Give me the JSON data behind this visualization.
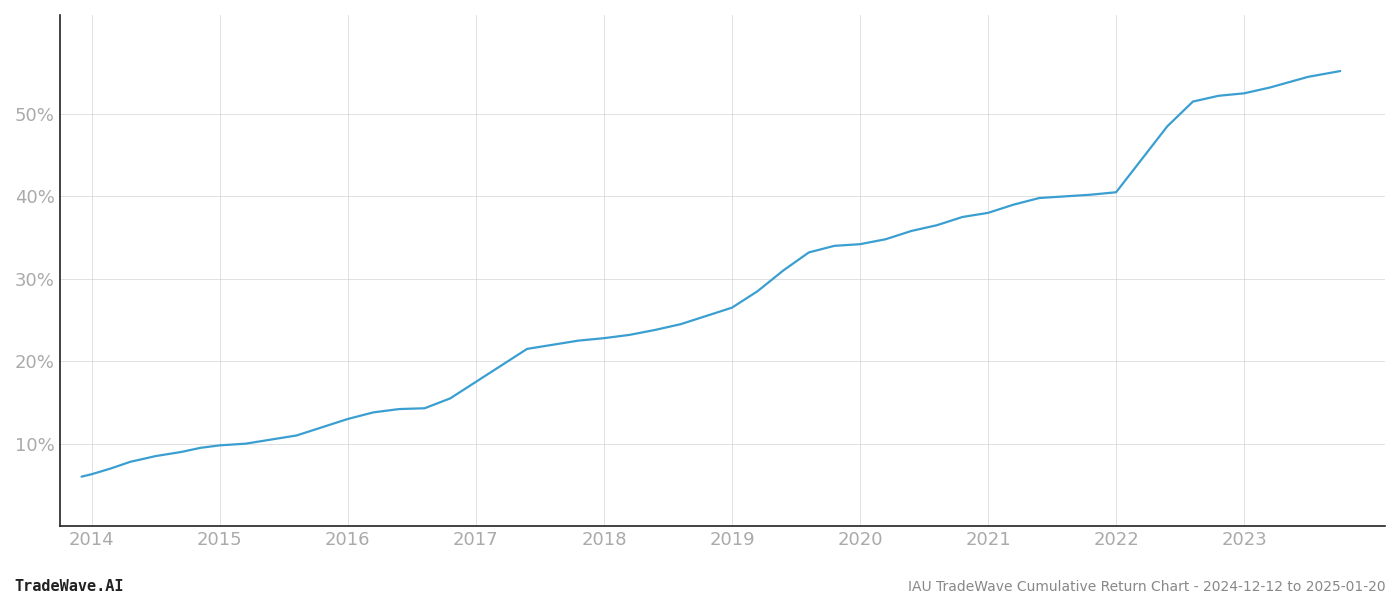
{
  "title": "IAU TradeWave Cumulative Return Chart - 2024-12-12 to 2025-01-20",
  "watermark": "TradeWave.AI",
  "line_color": "#3a9fd0",
  "background_color": "#ffffff",
  "grid_color": "#cccccc",
  "x_years": [
    2014,
    2015,
    2016,
    2017,
    2018,
    2019,
    2020,
    2021,
    2022,
    2023
  ],
  "x_values": [
    2013.92,
    2014.0,
    2014.15,
    2014.3,
    2014.5,
    2014.7,
    2014.85,
    2015.0,
    2015.2,
    2015.4,
    2015.6,
    2015.8,
    2016.0,
    2016.2,
    2016.4,
    2016.6,
    2016.8,
    2017.0,
    2017.2,
    2017.4,
    2017.6,
    2017.8,
    2018.0,
    2018.2,
    2018.4,
    2018.6,
    2018.8,
    2019.0,
    2019.2,
    2019.4,
    2019.6,
    2019.8,
    2020.0,
    2020.2,
    2020.4,
    2020.6,
    2020.8,
    2021.0,
    2021.2,
    2021.4,
    2021.6,
    2021.8,
    2022.0,
    2022.2,
    2022.4,
    2022.6,
    2022.8,
    2023.0,
    2023.2,
    2023.5,
    2023.75
  ],
  "y_values": [
    6.0,
    6.3,
    7.0,
    7.8,
    8.5,
    9.0,
    9.5,
    9.8,
    10.0,
    10.5,
    11.0,
    12.0,
    13.0,
    13.8,
    14.2,
    14.3,
    15.5,
    17.5,
    19.5,
    21.5,
    22.0,
    22.5,
    22.8,
    23.2,
    23.8,
    24.5,
    25.5,
    26.5,
    28.5,
    31.0,
    33.2,
    34.0,
    34.2,
    34.8,
    35.8,
    36.5,
    37.5,
    38.0,
    39.0,
    39.8,
    40.0,
    40.2,
    40.5,
    44.5,
    48.5,
    51.5,
    52.2,
    52.5,
    53.2,
    54.5,
    55.2
  ],
  "yticks": [
    10,
    20,
    30,
    40,
    50
  ],
  "ylim": [
    0,
    62
  ],
  "xlim": [
    2013.75,
    2024.1
  ],
  "line_width": 1.6,
  "title_fontsize": 10,
  "watermark_fontsize": 11,
  "tick_fontsize": 13,
  "tick_color": "#aaaaaa",
  "spine_color": "#222222",
  "grid_alpha": 0.6
}
